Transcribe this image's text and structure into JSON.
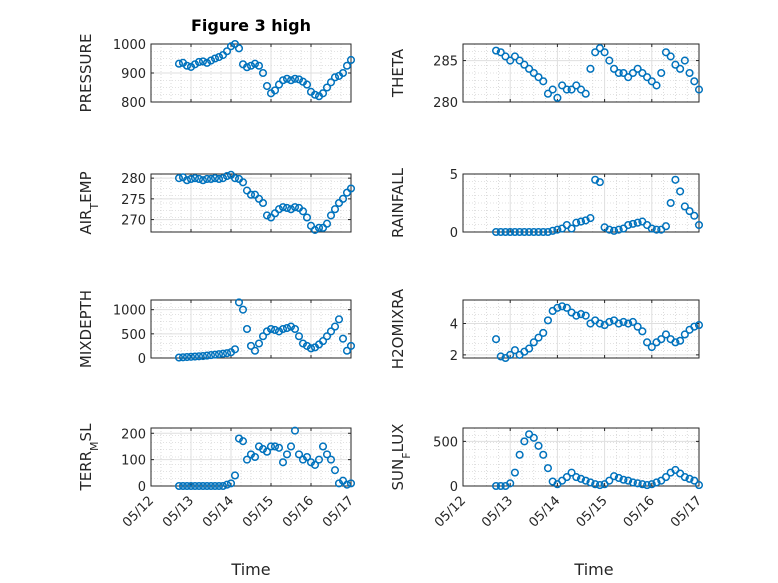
{
  "figure": {
    "title": "Figure 3 high",
    "xlabel": "Time",
    "x_tick_labels": [
      "05/12",
      "05/13",
      "05/14",
      "05/15",
      "05/16",
      "05/17"
    ]
  },
  "chart_data": [
    {
      "type": "scatter",
      "ylabel": "PRESSURE",
      "ylim": [
        800,
        1000
      ],
      "yticks": [
        800,
        900,
        1000
      ],
      "xlim": [
        0,
        5
      ],
      "grid": true,
      "marker_color": "#0072BD",
      "x": [
        0.7,
        0.8,
        0.9,
        1.0,
        1.1,
        1.2,
        1.3,
        1.4,
        1.5,
        1.6,
        1.7,
        1.8,
        1.9,
        2.0,
        2.1,
        2.2,
        2.3,
        2.4,
        2.5,
        2.6,
        2.7,
        2.8,
        2.9,
        3.0,
        3.1,
        3.2,
        3.3,
        3.4,
        3.5,
        3.6,
        3.7,
        3.8,
        3.9,
        4.0,
        4.1,
        4.2,
        4.3,
        4.4,
        4.5,
        4.6,
        4.7,
        4.8,
        4.9,
        5.0
      ],
      "y": [
        932,
        935,
        925,
        921,
        930,
        938,
        940,
        935,
        943,
        950,
        955,
        962,
        975,
        992,
        1000,
        985,
        930,
        920,
        925,
        932,
        925,
        900,
        855,
        830,
        840,
        860,
        875,
        880,
        875,
        880,
        878,
        870,
        860,
        835,
        825,
        820,
        830,
        850,
        868,
        885,
        890,
        900,
        925,
        945
      ]
    },
    {
      "type": "scatter",
      "ylabel": "THETA",
      "ylim": [
        280,
        287
      ],
      "yticks": [
        280,
        285
      ],
      "xlim": [
        0,
        5
      ],
      "grid": true,
      "marker_color": "#0072BD",
      "x": [
        0.7,
        0.8,
        0.9,
        1.0,
        1.1,
        1.2,
        1.3,
        1.4,
        1.5,
        1.6,
        1.7,
        1.8,
        1.9,
        2.0,
        2.1,
        2.2,
        2.3,
        2.4,
        2.5,
        2.6,
        2.7,
        2.8,
        2.9,
        3.0,
        3.1,
        3.2,
        3.3,
        3.4,
        3.5,
        3.6,
        3.7,
        3.8,
        3.9,
        4.0,
        4.1,
        4.2,
        4.3,
        4.4,
        4.5,
        4.6,
        4.7,
        4.8,
        4.9,
        5.0
      ],
      "y": [
        286.2,
        286.0,
        285.5,
        285.0,
        285.5,
        285.0,
        284.5,
        284.0,
        283.5,
        283.0,
        282.5,
        281.0,
        281.5,
        280.5,
        282.0,
        281.5,
        281.5,
        282.0,
        281.5,
        281.0,
        284.0,
        286.0,
        286.5,
        286.0,
        285.0,
        284.0,
        283.5,
        283.5,
        283.0,
        283.5,
        284.0,
        283.5,
        283.0,
        282.5,
        282.0,
        283.5,
        286.0,
        285.5,
        284.5,
        284.0,
        285.0,
        283.5,
        282.5,
        281.5
      ]
    },
    {
      "type": "scatter",
      "ylabel": "AIR_TEMP",
      "ylim": [
        267,
        281
      ],
      "yticks": [
        270,
        275,
        280
      ],
      "xlim": [
        0,
        5
      ],
      "grid": true,
      "marker_color": "#0072BD",
      "x": [
        0.7,
        0.8,
        0.9,
        1.0,
        1.1,
        1.2,
        1.3,
        1.4,
        1.5,
        1.6,
        1.7,
        1.8,
        1.9,
        2.0,
        2.1,
        2.2,
        2.3,
        2.4,
        2.5,
        2.6,
        2.7,
        2.8,
        2.9,
        3.0,
        3.1,
        3.2,
        3.3,
        3.4,
        3.5,
        3.6,
        3.7,
        3.8,
        3.9,
        4.0,
        4.1,
        4.2,
        4.3,
        4.4,
        4.5,
        4.6,
        4.7,
        4.8,
        4.9,
        5.0
      ],
      "y": [
        280.0,
        280.2,
        279.5,
        279.8,
        280.0,
        279.8,
        279.5,
        279.8,
        279.8,
        280.0,
        279.8,
        280.0,
        280.5,
        280.8,
        280.0,
        279.8,
        279.0,
        277.0,
        276.0,
        276.0,
        275.0,
        274.0,
        271.0,
        270.5,
        271.5,
        272.5,
        273.0,
        272.8,
        272.5,
        273.0,
        272.8,
        272.0,
        270.5,
        268.5,
        267.5,
        268.0,
        268.0,
        269.0,
        271.0,
        272.5,
        274.0,
        275.0,
        276.5,
        277.5
      ]
    },
    {
      "type": "scatter",
      "ylabel": "RAINFALL",
      "ylim": [
        0,
        5
      ],
      "yticks": [
        0,
        5
      ],
      "xlim": [
        0,
        5
      ],
      "grid": true,
      "marker_color": "#0072BD",
      "x": [
        0.7,
        0.8,
        0.9,
        1.0,
        1.1,
        1.2,
        1.3,
        1.4,
        1.5,
        1.6,
        1.7,
        1.8,
        1.9,
        2.0,
        2.1,
        2.2,
        2.3,
        2.4,
        2.5,
        2.6,
        2.7,
        2.8,
        2.9,
        3.0,
        3.1,
        3.2,
        3.3,
        3.4,
        3.5,
        3.6,
        3.7,
        3.8,
        3.9,
        4.0,
        4.1,
        4.2,
        4.3,
        4.4,
        4.5,
        4.6,
        4.7,
        4.8,
        4.9,
        5.0
      ],
      "y": [
        0,
        0,
        0,
        0,
        0,
        0,
        0,
        0,
        0,
        0,
        0,
        0,
        0.1,
        0.2,
        0.3,
        0.6,
        0.3,
        0.8,
        0.9,
        1.0,
        1.2,
        4.5,
        4.3,
        0.4,
        0.2,
        0.1,
        0.2,
        0.3,
        0.6,
        0.7,
        0.8,
        0.9,
        0.6,
        0.3,
        0.2,
        0.2,
        0.5,
        2.5,
        4.5,
        3.5,
        2.2,
        1.8,
        1.4,
        0.6
      ]
    },
    {
      "type": "scatter",
      "ylabel": "MIXDEPTH",
      "ylim": [
        0,
        1200
      ],
      "yticks": [
        0,
        500,
        1000
      ],
      "xlim": [
        0,
        5
      ],
      "grid": true,
      "marker_color": "#0072BD",
      "x": [
        0.7,
        0.8,
        0.9,
        1.0,
        1.1,
        1.2,
        1.3,
        1.4,
        1.5,
        1.6,
        1.7,
        1.8,
        1.9,
        2.0,
        2.1,
        2.2,
        2.3,
        2.4,
        2.5,
        2.6,
        2.7,
        2.8,
        2.9,
        3.0,
        3.1,
        3.2,
        3.3,
        3.4,
        3.5,
        3.6,
        3.7,
        3.8,
        3.9,
        4.0,
        4.1,
        4.2,
        4.3,
        4.4,
        4.5,
        4.6,
        4.7,
        4.8,
        4.9,
        5.0
      ],
      "y": [
        10,
        15,
        20,
        25,
        30,
        35,
        40,
        50,
        60,
        70,
        80,
        90,
        100,
        120,
        180,
        1150,
        1000,
        600,
        250,
        150,
        300,
        450,
        550,
        600,
        580,
        550,
        600,
        620,
        650,
        600,
        450,
        300,
        250,
        200,
        220,
        280,
        350,
        450,
        550,
        650,
        800,
        400,
        150,
        250
      ]
    },
    {
      "type": "scatter",
      "ylabel": "H2OMIXRA",
      "ylim": [
        1.8,
        5.5
      ],
      "yticks": [
        2,
        4
      ],
      "xlim": [
        0,
        5
      ],
      "grid": true,
      "marker_color": "#0072BD",
      "x": [
        0.7,
        0.8,
        0.9,
        1.0,
        1.1,
        1.2,
        1.3,
        1.4,
        1.5,
        1.6,
        1.7,
        1.8,
        1.9,
        2.0,
        2.1,
        2.2,
        2.3,
        2.4,
        2.5,
        2.6,
        2.7,
        2.8,
        2.9,
        3.0,
        3.1,
        3.2,
        3.3,
        3.4,
        3.5,
        3.6,
        3.7,
        3.8,
        3.9,
        4.0,
        4.1,
        4.2,
        4.3,
        4.4,
        4.5,
        4.6,
        4.7,
        4.8,
        4.9,
        5.0
      ],
      "y": [
        3.0,
        1.9,
        1.8,
        2.0,
        2.3,
        2.0,
        2.2,
        2.4,
        2.8,
        3.1,
        3.4,
        4.2,
        4.8,
        5.0,
        5.1,
        5.0,
        4.7,
        4.5,
        4.6,
        4.5,
        4.0,
        4.2,
        4.0,
        3.9,
        4.1,
        4.2,
        4.0,
        4.1,
        4.0,
        4.1,
        3.8,
        3.5,
        2.8,
        2.5,
        2.8,
        3.0,
        3.3,
        3.0,
        2.8,
        2.9,
        3.3,
        3.6,
        3.8,
        3.9
      ]
    },
    {
      "type": "scatter",
      "ylabel": "TERR_MSL",
      "ylim": [
        0,
        220
      ],
      "yticks": [
        0,
        100,
        200
      ],
      "xlim": [
        0,
        5
      ],
      "grid": true,
      "marker_color": "#0072BD",
      "x": [
        0.7,
        0.8,
        0.9,
        1.0,
        1.1,
        1.2,
        1.3,
        1.4,
        1.5,
        1.6,
        1.7,
        1.8,
        1.9,
        2.0,
        2.1,
        2.2,
        2.3,
        2.4,
        2.5,
        2.6,
        2.7,
        2.8,
        2.9,
        3.0,
        3.1,
        3.2,
        3.3,
        3.4,
        3.5,
        3.6,
        3.7,
        3.8,
        3.9,
        4.0,
        4.1,
        4.2,
        4.3,
        4.4,
        4.5,
        4.6,
        4.7,
        4.8,
        4.9,
        5.0
      ],
      "y": [
        0,
        0,
        0,
        0,
        0,
        0,
        0,
        0,
        0,
        0,
        0,
        0,
        5,
        10,
        40,
        180,
        170,
        100,
        120,
        110,
        150,
        140,
        130,
        150,
        150,
        145,
        90,
        120,
        150,
        210,
        120,
        100,
        110,
        90,
        80,
        100,
        150,
        120,
        100,
        60,
        10,
        20,
        5,
        10
      ]
    },
    {
      "type": "scatter",
      "ylabel": "SUN_FLUX",
      "ylim": [
        0,
        650
      ],
      "yticks": [
        0,
        500
      ],
      "xlim": [
        0,
        5
      ],
      "grid": true,
      "marker_color": "#0072BD",
      "x": [
        0.7,
        0.8,
        0.9,
        1.0,
        1.1,
        1.2,
        1.3,
        1.4,
        1.5,
        1.6,
        1.7,
        1.8,
        1.9,
        2.0,
        2.1,
        2.2,
        2.3,
        2.4,
        2.5,
        2.6,
        2.7,
        2.8,
        2.9,
        3.0,
        3.1,
        3.2,
        3.3,
        3.4,
        3.5,
        3.6,
        3.7,
        3.8,
        3.9,
        4.0,
        4.1,
        4.2,
        4.3,
        4.4,
        4.5,
        4.6,
        4.7,
        4.8,
        4.9,
        5.0
      ],
      "y": [
        0,
        0,
        0,
        30,
        150,
        350,
        500,
        580,
        540,
        450,
        350,
        200,
        50,
        20,
        60,
        100,
        150,
        100,
        80,
        60,
        40,
        20,
        10,
        20,
        60,
        110,
        90,
        70,
        60,
        40,
        30,
        20,
        10,
        20,
        40,
        60,
        100,
        150,
        180,
        140,
        100,
        80,
        60,
        10
      ]
    }
  ]
}
